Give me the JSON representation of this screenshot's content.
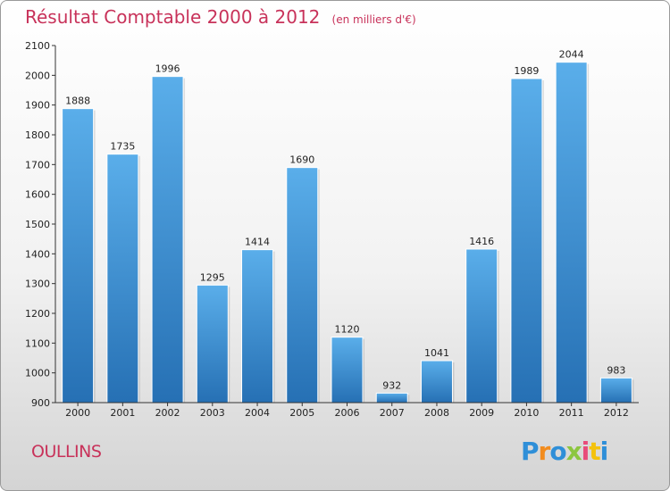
{
  "chart_data": {
    "type": "bar",
    "title": "Résultat Comptable 2000 à 2012",
    "subtitle": "(en milliers d'€)",
    "categories": [
      "2000",
      "2001",
      "2002",
      "2003",
      "2004",
      "2005",
      "2006",
      "2007",
      "2008",
      "2009",
      "2010",
      "2011",
      "2012"
    ],
    "values": [
      1888,
      1735,
      1996,
      1295,
      1414,
      1690,
      1120,
      932,
      1041,
      1416,
      1989,
      2044,
      983
    ],
    "ylim": [
      900,
      2100
    ],
    "yticks": [
      900,
      1000,
      1100,
      1200,
      1300,
      1400,
      1500,
      1600,
      1700,
      1800,
      1900,
      2000,
      2100
    ],
    "grid": false,
    "bar_color": "#3d8fd6"
  },
  "footer": {
    "city": "OULLINS",
    "logo": [
      "P",
      "r",
      "o",
      "x",
      "i",
      "t",
      "i"
    ],
    "logo_colors": [
      "#2f8fd8",
      "#f28c1e",
      "#2f8fd8",
      "#8cc63f",
      "#e84c7a",
      "#f4c20d",
      "#2f8fd8"
    ]
  },
  "colors": {
    "title": "#c8325a",
    "axis": "#333333"
  }
}
